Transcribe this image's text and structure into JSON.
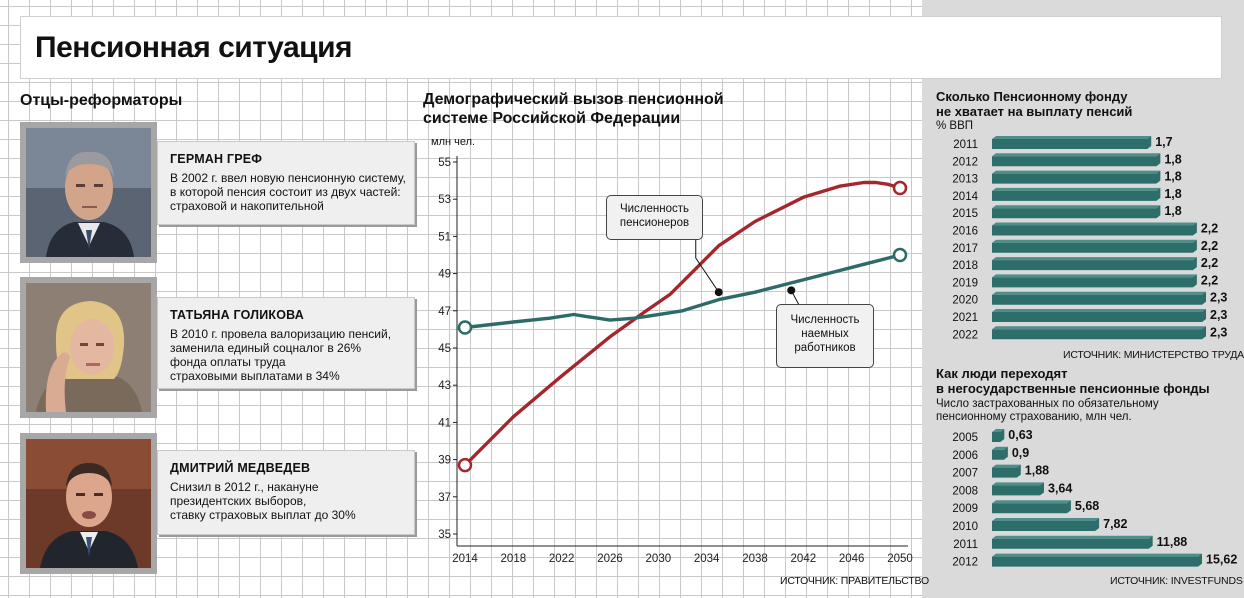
{
  "title": "Пенсионная ситуация",
  "reformers": {
    "heading": "Отцы-реформаторы",
    "people": [
      {
        "name": "ГЕРМАН ГРЕФ",
        "text": [
          "В 2002 г. ввел новую пенсионную систему,",
          "в которой пенсия состоит из двух частей:",
          "страховой и накопительной"
        ]
      },
      {
        "name": "ТАТЬЯНА ГОЛИКОВА",
        "text": [
          "В 2010 г. провела валоризацию пенсий,",
          "заменила единый соцналог в 26%",
          "фонда оплаты труда",
          "страховыми выплатами в 34%"
        ]
      },
      {
        "name": "ДМИТРИЙ МЕДВЕДЕВ",
        "text": [
          "Снизил в 2012 г., накануне",
          "президентских выборов,",
          "ставку страховых выплат до 30%"
        ]
      }
    ]
  },
  "colors": {
    "pensioners": "#a5262c",
    "workers": "#2d6b68",
    "bar": "#2e6e6a",
    "bar_top": "#4f8f8a"
  },
  "chart_data": [
    {
      "type": "line",
      "title": "Демографический вызов пенсионной системе Российской Федерации",
      "ylabel": "млн чел.",
      "ylim": [
        35,
        55
      ],
      "yticks": [
        "35",
        "37",
        "39",
        "41",
        "43",
        "45",
        "47",
        "49",
        "51",
        "53",
        "55"
      ],
      "xticks": [
        "2014",
        "2018",
        "2022",
        "2026",
        "2030",
        "2034",
        "2038",
        "2042",
        "2046",
        "2050"
      ],
      "xlim": [
        2014,
        2050
      ],
      "series": [
        {
          "name": "Численность пенсионеров",
          "x": [
            2014,
            2018,
            2022,
            2026,
            2029,
            2031,
            2033,
            2035,
            2038,
            2042,
            2045,
            2047,
            2048,
            2049,
            2050
          ],
          "y": [
            38.7,
            41.3,
            43.5,
            45.6,
            47.0,
            47.9,
            49.2,
            50.5,
            51.8,
            53.1,
            53.7,
            53.9,
            53.9,
            53.8,
            53.6
          ]
        },
        {
          "name": "Численность наемных работников",
          "x": [
            2014,
            2018,
            2021,
            2023,
            2024,
            2025,
            2026,
            2028,
            2029,
            2032,
            2035,
            2038,
            2041,
            2044,
            2047,
            2050
          ],
          "y": [
            46.1,
            46.4,
            46.6,
            46.8,
            46.7,
            46.6,
            46.5,
            46.6,
            46.7,
            47.0,
            47.6,
            48.0,
            48.5,
            49.0,
            49.5,
            50.0
          ]
        }
      ],
      "annotations": [
        {
          "label": [
            "Численность",
            "пенсионеров"
          ],
          "x": 2035,
          "y": 48.0
        },
        {
          "label": [
            "Численность",
            "наемных",
            "работников"
          ],
          "x": 2041,
          "y": 48.1
        }
      ],
      "source": "ИСТОЧНИК: ПРАВИТЕЛЬСТВО"
    },
    {
      "type": "bar",
      "title": [
        "Сколько Пенсионному фонду",
        "не хватает на выплату пенсий"
      ],
      "ylabel": "% ВВП",
      "categories": [
        "2011",
        "2012",
        "2013",
        "2014",
        "2015",
        "2016",
        "2017",
        "2018",
        "2019",
        "2020",
        "2021",
        "2022"
      ],
      "values": [
        1.7,
        1.8,
        1.8,
        1.8,
        1.8,
        2.2,
        2.2,
        2.2,
        2.2,
        2.3,
        2.3,
        2.3
      ],
      "labels": [
        "1,7",
        "1,8",
        "1,8",
        "1,8",
        "1,8",
        "2,2",
        "2,2",
        "2,2",
        "2,2",
        "2,3",
        "2,3",
        "2,3"
      ],
      "xlim": [
        0,
        2.3
      ],
      "source": "ИСТОЧНИК: МИНИСТЕРСТВО ТРУДА"
    },
    {
      "type": "bar",
      "title": [
        "Как люди переходят",
        "в негосударственные пенсионные фонды"
      ],
      "subtitle": [
        "Число застрахованных по обязательному",
        "пенсионному страхованию, млн чел."
      ],
      "categories": [
        "2005",
        "2006",
        "2007",
        "2008",
        "2009",
        "2010",
        "2011",
        "2012"
      ],
      "values": [
        0.63,
        0.9,
        1.88,
        3.64,
        5.68,
        7.82,
        11.88,
        15.62
      ],
      "labels": [
        "0,63",
        "0,9",
        "1,88",
        "3,64",
        "5,68",
        "7,82",
        "11,88",
        "15,62"
      ],
      "xlim": [
        0,
        15.62
      ],
      "source": "ИСТОЧНИК: INVESTFUNDS"
    }
  ]
}
